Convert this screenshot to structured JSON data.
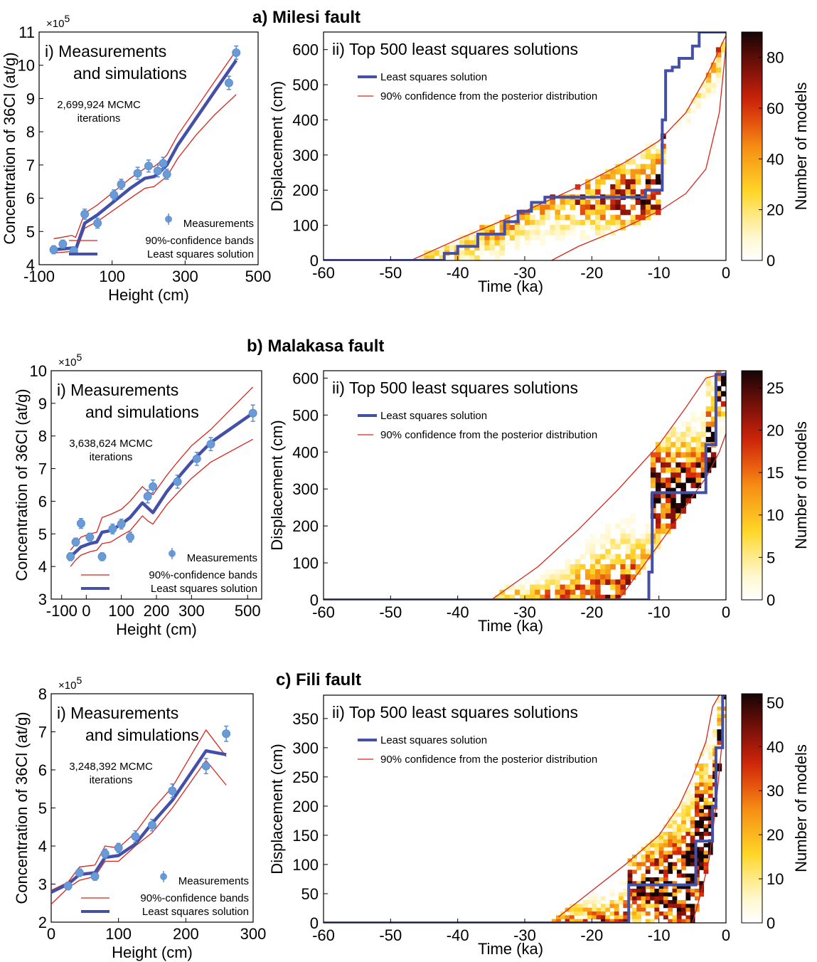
{
  "figure": {
    "panels": [
      {
        "heading": "a)  Milesi fault",
        "left": {
          "title_line1": "i)  Measurements",
          "title_line2": "and simulations",
          "xlabel": "Height (cm)",
          "ylabel": "Concentration of 36Cl (at/g)",
          "multiplier": "×10",
          "multiplier_exp": "5",
          "iterations_line1": "2,699,924 MCMC",
          "iterations_line2": "iterations",
          "legend": [
            "Measurements",
            "90%-confidence bands",
            "Least squares solution"
          ],
          "xticks": [
            "-100",
            "100",
            "300",
            "500"
          ],
          "yticks": [
            "4",
            "5",
            "6",
            "7",
            "8",
            "9",
            "10",
            "11"
          ]
        },
        "right": {
          "title": "ii)  Top 500 least squares solutions",
          "xlabel": "Time (ka)",
          "ylabel": "Displacement (cm)",
          "colorbar_label": "Number of models",
          "legend": [
            "Least squares solution",
            "90% confidence from the posterior distribution"
          ],
          "xticks": [
            "-60",
            "-50",
            "-40",
            "-30",
            "-20",
            "-10",
            "0"
          ],
          "yticks": [
            "0",
            "100",
            "200",
            "300",
            "400",
            "500",
            "600"
          ],
          "cticks": [
            "0",
            "20",
            "40",
            "60",
            "80"
          ]
        }
      },
      {
        "heading": "b)  Malakasa fault",
        "left": {
          "title_line1": "i)  Measurements",
          "title_line2": "and simulations",
          "xlabel": "Height (cm)",
          "ylabel": "Concentration of 36Cl (at/g)",
          "multiplier": "×10",
          "multiplier_exp": "5",
          "iterations_line1": "3,638,624 MCMC",
          "iterations_line2": "iterations",
          "legend": [
            "Measurements",
            "90%-confidence bands",
            "Least squares solution"
          ],
          "xticks": [
            "-100",
            "0",
            "100",
            "200",
            "300",
            "500"
          ],
          "yticks": [
            "3",
            "4",
            "5",
            "6",
            "7",
            "8",
            "9",
            "10"
          ]
        },
        "right": {
          "title": "ii)  Top 500 least squares solutions",
          "xlabel": "Time (ka)",
          "ylabel": "Displacement (cm)",
          "colorbar_label": "Number of models",
          "legend": [
            "Least squares solution",
            "90% confidence from the posterior distribution"
          ],
          "xticks": [
            "-60",
            "-50",
            "-40",
            "-30",
            "-20",
            "-10",
            "0"
          ],
          "yticks": [
            "0",
            "100",
            "200",
            "300",
            "400",
            "500",
            "600"
          ],
          "cticks": [
            "0",
            "5",
            "10",
            "15",
            "20",
            "25"
          ]
        }
      },
      {
        "heading": "c)  Fili fault",
        "left": {
          "title_line1": "i)  Measurements",
          "title_line2": "and simulations",
          "xlabel": "Height (cm)",
          "ylabel": "Concentration of 36Cl (at/g)",
          "multiplier": "×10",
          "multiplier_exp": "5",
          "iterations_line1": "3,248,392 MCMC",
          "iterations_line2": "iterations",
          "legend": [
            "Measurements",
            "90%-confidence bands",
            "Least squares solution"
          ],
          "xticks": [
            "0",
            "100",
            "200",
            "300"
          ],
          "yticks": [
            "2",
            "3",
            "4",
            "5",
            "6",
            "7",
            "8"
          ]
        },
        "right": {
          "title": "ii)  Top 500 least squares solutions",
          "xlabel": "Time (ka)",
          "ylabel": "Displacement (cm)",
          "colorbar_label": "Number of models",
          "legend": [
            "Least squares solution",
            "90% confidence from the posterior distribution"
          ],
          "xticks": [
            "-60",
            "-50",
            "-40",
            "-30",
            "-20",
            "-10",
            "0"
          ],
          "yticks": [
            "0",
            "50",
            "100",
            "150",
            "200",
            "250",
            "300",
            "350"
          ],
          "cticks": [
            "0",
            "10",
            "20",
            "30",
            "40",
            "50"
          ]
        }
      }
    ]
  },
  "chart_data": [
    {
      "type": "scatter",
      "panel": "a-i",
      "xlim": [
        -100,
        500
      ],
      "ylim": [
        4,
        11
      ],
      "y_scale_factor": 100000,
      "measurements": {
        "x": [
          -60,
          -35,
          -5,
          25,
          60,
          105,
          125,
          170,
          200,
          225,
          240,
          250,
          420,
          440
        ],
        "y": [
          4.45,
          4.62,
          4.42,
          5.52,
          5.25,
          6.1,
          6.42,
          6.75,
          6.97,
          6.82,
          7.05,
          6.72,
          9.47,
          10.38
        ],
        "err": [
          0.12,
          0.12,
          0.12,
          0.15,
          0.15,
          0.15,
          0.15,
          0.18,
          0.18,
          0.18,
          0.18,
          0.15,
          0.2,
          0.2
        ]
      },
      "least_squares": {
        "x": [
          -60,
          -10,
          0,
          25,
          60,
          150,
          190,
          215,
          230,
          250,
          280,
          330,
          380,
          440
        ],
        "y": [
          4.45,
          4.5,
          4.45,
          5.25,
          5.5,
          6.3,
          6.6,
          6.65,
          6.78,
          7.0,
          7.6,
          8.4,
          9.2,
          10.15
        ]
      },
      "band_upper": {
        "x": [
          -60,
          -10,
          0,
          25,
          60,
          150,
          190,
          215,
          230,
          250,
          280,
          330,
          380,
          440
        ],
        "y": [
          4.78,
          4.88,
          4.82,
          5.55,
          5.8,
          6.6,
          6.9,
          6.95,
          7.08,
          7.3,
          7.9,
          8.7,
          9.5,
          10.45
        ]
      },
      "band_lower": {
        "x": [
          -60,
          -10,
          0,
          25,
          60,
          150,
          190,
          215,
          230,
          250,
          280,
          330,
          380,
          440
        ],
        "y": [
          4.35,
          4.4,
          4.35,
          5.1,
          5.3,
          6.0,
          6.3,
          6.35,
          6.48,
          6.65,
          7.2,
          7.9,
          8.5,
          9.12
        ]
      }
    },
    {
      "type": "heatmap",
      "panel": "a-ii",
      "xlim": [
        -60,
        0
      ],
      "ylim": [
        0,
        650
      ],
      "clim": [
        0,
        90
      ],
      "least_squares": {
        "x": [
          -60,
          -42,
          -42,
          -40,
          -40,
          -37,
          -37,
          -33,
          -33,
          -31,
          -31,
          -29,
          -29,
          -27,
          -27,
          -12,
          -12,
          -9.5,
          -9.5,
          -9,
          -9,
          -8,
          -8,
          -7,
          -7,
          -5,
          -5,
          -4,
          -4,
          0
        ],
        "y": [
          0,
          0,
          20,
          20,
          40,
          40,
          75,
          75,
          110,
          110,
          140,
          140,
          165,
          165,
          180,
          180,
          200,
          200,
          400,
          400,
          540,
          540,
          550,
          550,
          575,
          575,
          610,
          610,
          650,
          650
        ]
      },
      "band_upper": {
        "x": [
          -47,
          -40,
          -30,
          -22,
          -15,
          -10,
          -6,
          -3,
          -1,
          0
        ],
        "y": [
          0,
          60,
          140,
          210,
          280,
          340,
          420,
          520,
          600,
          640
        ]
      },
      "band_lower": {
        "x": [
          -26,
          -22,
          -15,
          -10,
          -6,
          -3,
          -1,
          0
        ],
        "y": [
          0,
          40,
          95,
          140,
          190,
          260,
          420,
          610
        ]
      }
    },
    {
      "type": "scatter",
      "panel": "b-i",
      "xlim": [
        -100,
        500
      ],
      "ylim": [
        3,
        10
      ],
      "y_scale_factor": 100000,
      "measurements": {
        "x": [
          -45,
          -30,
          -15,
          10,
          45,
          75,
          100,
          125,
          175,
          190,
          260,
          315,
          355,
          475
        ],
        "y": [
          4.3,
          4.75,
          5.32,
          4.9,
          4.3,
          5.15,
          5.3,
          4.9,
          6.15,
          6.45,
          6.6,
          7.3,
          7.75,
          8.7
        ],
        "err": [
          0.12,
          0.12,
          0.15,
          0.12,
          0.12,
          0.15,
          0.15,
          0.15,
          0.2,
          0.2,
          0.2,
          0.2,
          0.2,
          0.25
        ]
      },
      "least_squares": {
        "x": [
          -45,
          -30,
          -15,
          10,
          30,
          45,
          70,
          100,
          125,
          160,
          175,
          190,
          230,
          260,
          300,
          355,
          475
        ],
        "y": [
          4.3,
          4.45,
          4.6,
          4.7,
          4.75,
          5.05,
          5.1,
          5.3,
          5.5,
          5.95,
          5.8,
          5.65,
          6.3,
          6.7,
          7.2,
          7.8,
          8.7
        ]
      },
      "band_upper": {
        "x": [
          -45,
          -30,
          -15,
          10,
          30,
          45,
          70,
          100,
          125,
          160,
          175,
          190,
          230,
          260,
          300,
          355,
          475
        ],
        "y": [
          4.5,
          4.7,
          4.9,
          5.0,
          5.05,
          5.5,
          5.6,
          5.75,
          6.0,
          6.45,
          6.3,
          6.2,
          6.8,
          7.2,
          7.7,
          8.2,
          9.5
        ]
      },
      "band_lower": {
        "x": [
          -45,
          -30,
          -15,
          10,
          30,
          45,
          70,
          100,
          125,
          160,
          175,
          190,
          230,
          260,
          300,
          355,
          475
        ],
        "y": [
          4.0,
          4.2,
          4.35,
          4.45,
          4.5,
          4.7,
          4.75,
          4.95,
          5.1,
          5.55,
          5.4,
          5.3,
          5.9,
          6.25,
          6.7,
          7.2,
          7.9
        ]
      }
    },
    {
      "type": "heatmap",
      "panel": "b-ii",
      "xlim": [
        -60,
        0
      ],
      "ylim": [
        0,
        620
      ],
      "clim": [
        0,
        27
      ],
      "least_squares": {
        "x": [
          -60,
          -11.5,
          -11.5,
          -11,
          -11,
          -3,
          -3,
          -1.5,
          -1.5,
          0
        ],
        "y": [
          0,
          0,
          75,
          75,
          290,
          290,
          420,
          420,
          610,
          610
        ]
      },
      "band_upper": {
        "x": [
          -35,
          -28,
          -22,
          -16,
          -10,
          -6,
          -3,
          -1,
          0
        ],
        "y": [
          0,
          90,
          190,
          300,
          420,
          520,
          600,
          610,
          615
        ]
      },
      "band_lower": {
        "x": [
          -16,
          -12,
          -8,
          -5,
          -3,
          -1,
          0
        ],
        "y": [
          0,
          100,
          200,
          280,
          330,
          400,
          450
        ]
      }
    },
    {
      "type": "scatter",
      "panel": "c-i",
      "xlim": [
        0,
        300
      ],
      "ylim": [
        2,
        8
      ],
      "y_scale_factor": 100000,
      "measurements": {
        "x": [
          -10,
          25,
          42,
          65,
          80,
          100,
          125,
          150,
          180,
          230,
          260
        ],
        "y": [
          2.6,
          2.95,
          3.3,
          3.2,
          3.8,
          3.95,
          4.25,
          4.55,
          5.45,
          6.1,
          6.95
        ],
        "err": [
          0.1,
          0.1,
          0.1,
          0.1,
          0.12,
          0.12,
          0.15,
          0.15,
          0.18,
          0.2,
          0.2
        ]
      },
      "least_squares": {
        "x": [
          -10,
          25,
          42,
          65,
          80,
          100,
          125,
          150,
          180,
          230,
          260
        ],
        "y": [
          2.7,
          3.0,
          3.25,
          3.3,
          3.7,
          3.75,
          4.05,
          4.6,
          5.2,
          6.5,
          6.4
        ]
      },
      "band_upper": {
        "x": [
          -10,
          25,
          42,
          65,
          80,
          100,
          125,
          150,
          180,
          230,
          260
        ],
        "y": [
          2.75,
          3.05,
          3.45,
          3.5,
          4.0,
          3.95,
          4.35,
          4.95,
          5.55,
          7.05,
          6.35
        ]
      },
      "band_lower": {
        "x": [
          -10,
          25,
          42,
          65,
          80,
          100,
          125,
          150,
          180,
          230,
          260
        ],
        "y": [
          2.3,
          2.9,
          3.1,
          3.2,
          3.6,
          3.6,
          4.0,
          4.35,
          5.0,
          6.25,
          5.6
        ]
      }
    },
    {
      "type": "heatmap",
      "panel": "c-ii",
      "xlim": [
        -60,
        0
      ],
      "ylim": [
        0,
        390
      ],
      "clim": [
        0,
        52
      ],
      "least_squares": {
        "x": [
          -60,
          -14.5,
          -14.5,
          -4.5,
          -4.5,
          -2,
          -2,
          -1.5,
          -1.5,
          -0.5,
          -0.5,
          0
        ],
        "y": [
          0,
          0,
          65,
          65,
          140,
          140,
          200,
          200,
          300,
          300,
          390,
          390
        ]
      },
      "band_upper": {
        "x": [
          -25,
          -20,
          -15,
          -10,
          -7,
          -5,
          -3,
          -2,
          -1
        ],
        "y": [
          10,
          55,
          100,
          150,
          200,
          250,
          310,
          370,
          390
        ]
      },
      "band_lower": {
        "x": [
          -5,
          -3.5,
          -2.5,
          -1.5,
          -0.5
        ],
        "y": [
          0,
          60,
          110,
          200,
          320
        ]
      }
    }
  ]
}
